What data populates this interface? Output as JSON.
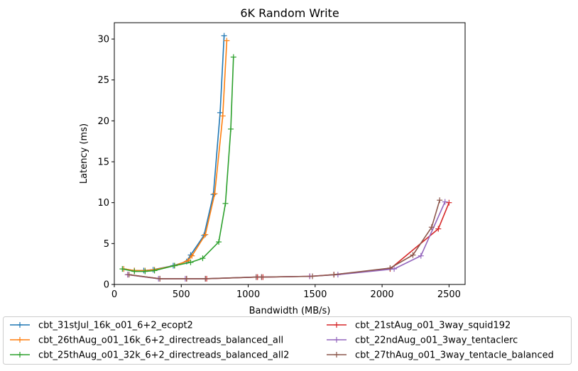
{
  "chart_data": {
    "type": "line",
    "title": "6K  Random Write",
    "xlabel": "Bandwidth (MB/s)",
    "ylabel": "Latency (ms)",
    "xlim": [
      0,
      2620
    ],
    "ylim": [
      0,
      32
    ],
    "xticks": [
      0,
      500,
      1000,
      1500,
      2000,
      2500
    ],
    "yticks": [
      0,
      5,
      10,
      15,
      20,
      25,
      30
    ],
    "grid": false,
    "legend_position": "below plot, two columns",
    "marker": "plus",
    "series": [
      {
        "name": "cbt_31stJul_16k_o01_6+2_ecopt2",
        "color": "#1f77b4",
        "points": [
          [
            70,
            1.9
          ],
          [
            150,
            1.7
          ],
          [
            220,
            1.7
          ],
          [
            290,
            1.8
          ],
          [
            440,
            2.3
          ],
          [
            540,
            2.8
          ],
          [
            570,
            3.6
          ],
          [
            670,
            6.0
          ],
          [
            740,
            11.0
          ],
          [
            790,
            21.0
          ],
          [
            820,
            30.4
          ]
        ]
      },
      {
        "name": "cbt_26thAug_o01_16k_6+2_directreads_balanced_all",
        "color": "#ff7f0e",
        "points": [
          [
            70,
            1.9
          ],
          [
            150,
            1.7
          ],
          [
            230,
            1.7
          ],
          [
            300,
            1.8
          ],
          [
            450,
            2.3
          ],
          [
            550,
            2.9
          ],
          [
            580,
            3.5
          ],
          [
            680,
            6.1
          ],
          [
            750,
            11.1
          ],
          [
            810,
            20.6
          ],
          [
            840,
            29.8
          ]
        ]
      },
      {
        "name": "cbt_25thAug_o01_32k_6+2_directreads_balanced_all2",
        "color": "#2ca02c",
        "points": [
          [
            60,
            1.9
          ],
          [
            150,
            1.6
          ],
          [
            230,
            1.6
          ],
          [
            300,
            1.7
          ],
          [
            450,
            2.3
          ],
          [
            570,
            2.7
          ],
          [
            660,
            3.2
          ],
          [
            780,
            5.2
          ],
          [
            830,
            9.9
          ],
          [
            870,
            19.0
          ],
          [
            890,
            27.8
          ]
        ]
      },
      {
        "name": "cbt_21stAug_o01_3way_squid192",
        "color": "#d62728",
        "points": [
          [
            100,
            1.2
          ],
          [
            340,
            0.7
          ],
          [
            540,
            0.7
          ],
          [
            690,
            0.7
          ],
          [
            1070,
            0.9
          ],
          [
            1110,
            0.9
          ],
          [
            1460,
            1.0
          ],
          [
            1640,
            1.2
          ],
          [
            2060,
            1.9
          ],
          [
            2420,
            6.8
          ],
          [
            2500,
            10.0
          ]
        ]
      },
      {
        "name": "cbt_22ndAug_o01_3way_tentaclerc",
        "color": "#9467bd",
        "points": [
          [
            100,
            1.2
          ],
          [
            330,
            0.7
          ],
          [
            530,
            0.7
          ],
          [
            680,
            0.7
          ],
          [
            1060,
            0.9
          ],
          [
            1100,
            0.9
          ],
          [
            1460,
            1.0
          ],
          [
            1670,
            1.2
          ],
          [
            2090,
            1.9
          ],
          [
            2290,
            3.5
          ],
          [
            2470,
            10.1
          ]
        ]
      },
      {
        "name": "cbt_27thAug_o01_3way_tentacle_balanced",
        "color": "#8c564b",
        "points": [
          [
            110,
            1.2
          ],
          [
            340,
            0.7
          ],
          [
            540,
            0.7
          ],
          [
            680,
            0.7
          ],
          [
            1060,
            0.9
          ],
          [
            1100,
            0.9
          ],
          [
            1480,
            1.0
          ],
          [
            1640,
            1.2
          ],
          [
            2060,
            2.0
          ],
          [
            2230,
            3.6
          ],
          [
            2370,
            7.0
          ],
          [
            2430,
            10.3
          ]
        ]
      }
    ]
  }
}
